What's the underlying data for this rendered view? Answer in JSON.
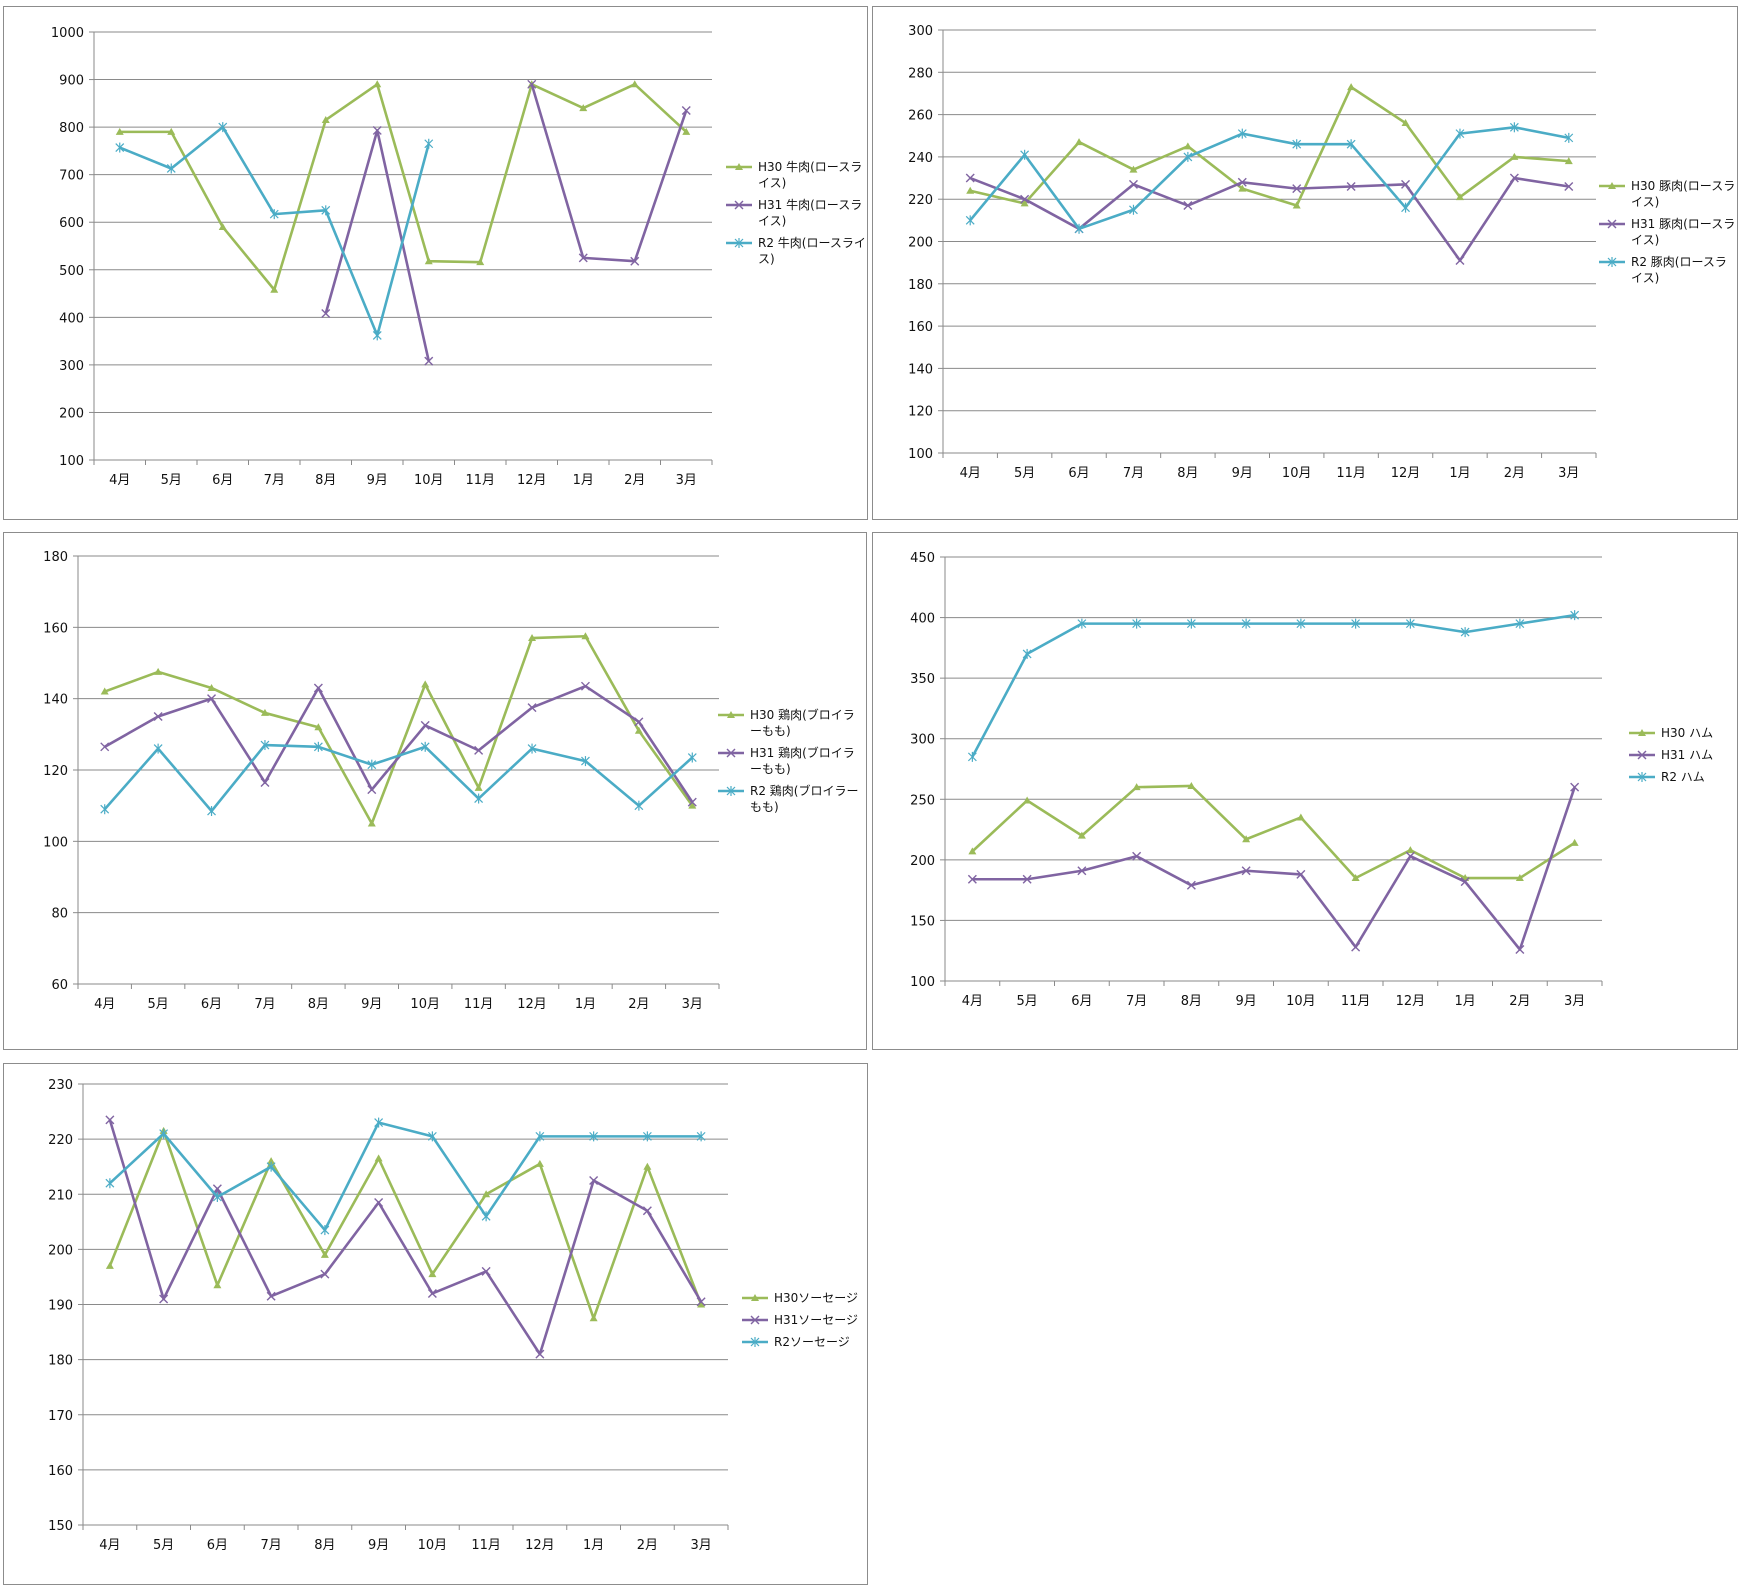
{
  "chart_data": [
    {
      "type": "line",
      "categories": [
        "4月",
        "5月",
        "6月",
        "7月",
        "8月",
        "9月",
        "10月",
        "11月",
        "12月",
        "1月",
        "2月",
        "3月"
      ],
      "ylim": [
        100,
        1000
      ],
      "yticks": [
        100,
        200,
        300,
        400,
        500,
        600,
        700,
        800,
        900,
        1000
      ],
      "grid": true,
      "legend": "right",
      "series": [
        {
          "name": "H30 牛肉(ロースライス)",
          "color": "#9bbb59",
          "marker": "triangle",
          "values": [
            790,
            790,
            590,
            458,
            815,
            890,
            518,
            516,
            890,
            840,
            890,
            790
          ]
        },
        {
          "name": "H31 牛肉(ロースライス)",
          "color": "#8064a2",
          "marker": "x",
          "values": [
            null,
            null,
            null,
            null,
            408,
            793,
            308,
            null,
            890,
            525,
            518,
            835
          ]
        },
        {
          "name": "R2 牛肉(ロースライス)",
          "color": "#4bacc6",
          "marker": "star",
          "values": [
            757,
            713,
            800,
            617,
            625,
            362,
            765,
            null,
            null,
            null,
            null,
            null
          ]
        }
      ]
    },
    {
      "type": "line",
      "categories": [
        "4月",
        "5月",
        "6月",
        "7月",
        "8月",
        "9月",
        "10月",
        "11月",
        "12月",
        "1月",
        "2月",
        "3月"
      ],
      "ylim": [
        100,
        300
      ],
      "yticks": [
        100,
        120,
        140,
        160,
        180,
        200,
        220,
        240,
        260,
        280,
        300
      ],
      "grid": true,
      "legend": "right",
      "series": [
        {
          "name": "H30 豚肉(ロースライス)",
          "color": "#9bbb59",
          "marker": "triangle",
          "values": [
            224,
            218,
            247,
            234,
            245,
            225,
            217,
            273,
            256,
            221,
            240,
            238
          ]
        },
        {
          "name": "H31 豚肉(ロースライス)",
          "color": "#8064a2",
          "marker": "x",
          "values": [
            230,
            220,
            206,
            227,
            217,
            228,
            225,
            226,
            227,
            191,
            230,
            226
          ]
        },
        {
          "name": "R2 豚肉(ロースライス)",
          "color": "#4bacc6",
          "marker": "star",
          "values": [
            210,
            241,
            206,
            215,
            240,
            251,
            246,
            246,
            216,
            251,
            254,
            249
          ]
        }
      ]
    },
    {
      "type": "line",
      "categories": [
        "4月",
        "5月",
        "6月",
        "7月",
        "8月",
        "9月",
        "10月",
        "11月",
        "12月",
        "1月",
        "2月",
        "3月"
      ],
      "ylim": [
        60,
        180
      ],
      "yticks": [
        60,
        80,
        100,
        120,
        140,
        160,
        180
      ],
      "grid": true,
      "legend": "right",
      "series": [
        {
          "name": "H30 鶏肉(ブロイラーもも)",
          "color": "#9bbb59",
          "marker": "triangle",
          "values": [
            142,
            147.5,
            143,
            136,
            132,
            105,
            144,
            115,
            157,
            157.5,
            131,
            110
          ]
        },
        {
          "name": "H31 鶏肉(ブロイラーもも)",
          "color": "#8064a2",
          "marker": "x",
          "values": [
            126.5,
            135,
            140,
            116.5,
            143,
            114.5,
            132.5,
            125.5,
            137.5,
            143.5,
            133.5,
            111
          ]
        },
        {
          "name": "R2 鶏肉(ブロイラーもも)",
          "color": "#4bacc6",
          "marker": "star",
          "values": [
            109,
            126,
            108.5,
            127,
            126.5,
            121.5,
            126.5,
            112,
            126,
            122.5,
            110,
            123.5
          ]
        }
      ]
    },
    {
      "type": "line",
      "categories": [
        "4月",
        "5月",
        "6月",
        "7月",
        "8月",
        "9月",
        "10月",
        "11月",
        "12月",
        "1月",
        "2月",
        "3月"
      ],
      "ylim": [
        100,
        450
      ],
      "yticks": [
        100,
        150,
        200,
        250,
        300,
        350,
        400,
        450
      ],
      "grid": true,
      "legend": "right",
      "series": [
        {
          "name": "H30 ハム",
          "color": "#9bbb59",
          "marker": "triangle",
          "values": [
            207,
            249,
            220,
            260,
            261,
            217,
            235,
            185,
            208,
            185,
            185,
            214
          ]
        },
        {
          "name": "H31 ハム",
          "color": "#8064a2",
          "marker": "x",
          "values": [
            184,
            184,
            191,
            203,
            179,
            191,
            188,
            128,
            203,
            182,
            126,
            260
          ]
        },
        {
          "name": "R2 ハム",
          "color": "#4bacc6",
          "marker": "star",
          "values": [
            285,
            370,
            395,
            395,
            395,
            395,
            395,
            395,
            395,
            388,
            395,
            402
          ]
        }
      ]
    },
    {
      "type": "line",
      "categories": [
        "4月",
        "5月",
        "6月",
        "7月",
        "8月",
        "9月",
        "10月",
        "11月",
        "12月",
        "1月",
        "2月",
        "3月"
      ],
      "ylim": [
        150,
        230
      ],
      "yticks": [
        150,
        160,
        170,
        180,
        190,
        200,
        210,
        220,
        230
      ],
      "grid": true,
      "legend": "right",
      "series": [
        {
          "name": "H30ソーセージ",
          "color": "#9bbb59",
          "marker": "triangle",
          "values": [
            197,
            221.5,
            193.5,
            216,
            199,
            216.5,
            195.5,
            210,
            215.5,
            187.5,
            215,
            190
          ]
        },
        {
          "name": "H31ソーセージ",
          "color": "#8064a2",
          "marker": "x",
          "values": [
            223.5,
            191,
            211,
            191.5,
            195.5,
            208.5,
            192,
            196,
            181,
            212.5,
            207,
            190.5
          ]
        },
        {
          "name": "R2ソーセージ",
          "color": "#4bacc6",
          "marker": "star",
          "values": [
            212,
            221,
            209.5,
            215,
            203.5,
            223,
            220.5,
            206,
            220.5,
            220.5,
            220.5,
            220.5
          ]
        }
      ]
    }
  ]
}
